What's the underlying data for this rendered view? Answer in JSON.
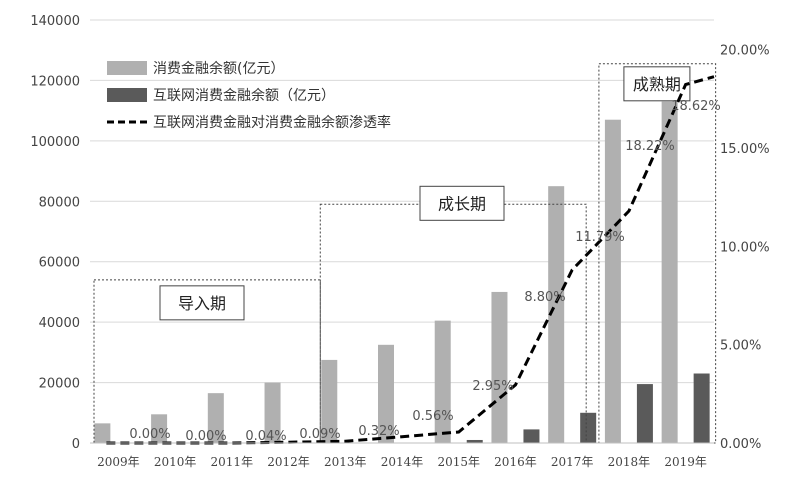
{
  "chart_data": {
    "type": "bar",
    "categories": [
      "2009年",
      "2010年",
      "2011年",
      "2012年",
      "2013年",
      "2014年",
      "2015年",
      "2016年",
      "2017年",
      "2018年",
      "2019年"
    ],
    "series": [
      {
        "name": "消费金融余额(亿元）",
        "type": "bar",
        "axis": "left",
        "color": "#b0b0b0",
        "values": [
          6500,
          9500,
          16500,
          20000,
          27500,
          32500,
          40500,
          50000,
          85000,
          107000,
          113000
        ]
      },
      {
        "name": "互联网消费金融余额（亿元）",
        "type": "bar",
        "axis": "left",
        "color": "#5a5a5a",
        "values": [
          0,
          0,
          0,
          100,
          150,
          150,
          1000,
          4500,
          10000,
          19500,
          23000
        ]
      },
      {
        "name": "互联网消费金融对消费金融余额渗透率",
        "type": "line",
        "axis": "right",
        "color": "#000000",
        "values": [
          0.0,
          0.0,
          0.0,
          0.04,
          0.09,
          0.32,
          0.56,
          2.95,
          8.8,
          11.79,
          18.22,
          18.62
        ],
        "x": [
          0,
          1,
          2,
          3,
          4,
          5,
          6,
          7,
          8,
          9,
          10,
          10.5
        ],
        "labels": [
          "0.00%",
          "0.00%",
          "0.04%",
          "0.09%",
          "0.32%",
          "0.56%",
          "2.95%",
          "8.80%",
          "11.79%",
          "18.22%",
          "18.62%"
        ]
      }
    ],
    "left_axis": {
      "ylim": [
        0,
        140000
      ],
      "ticks": [
        "0",
        "20000",
        "40000",
        "60000",
        "80000",
        "100000",
        "120000",
        "140000"
      ]
    },
    "right_axis": {
      "ylim": [
        0,
        21.5
      ],
      "ticks": [
        "0.00%",
        "5.00%",
        "10.00%",
        "15.00%",
        "20.00%"
      ]
    },
    "phases": [
      {
        "label": "导入期",
        "from": 2009,
        "to": 2013,
        "top": 54000
      },
      {
        "label": "成长期",
        "from": 2013,
        "to": 2017,
        "top": 79000
      },
      {
        "label": "成熟期",
        "from": 2018,
        "to": 2019,
        "top": 125500
      }
    ],
    "grid": true,
    "legend": "top-left"
  }
}
